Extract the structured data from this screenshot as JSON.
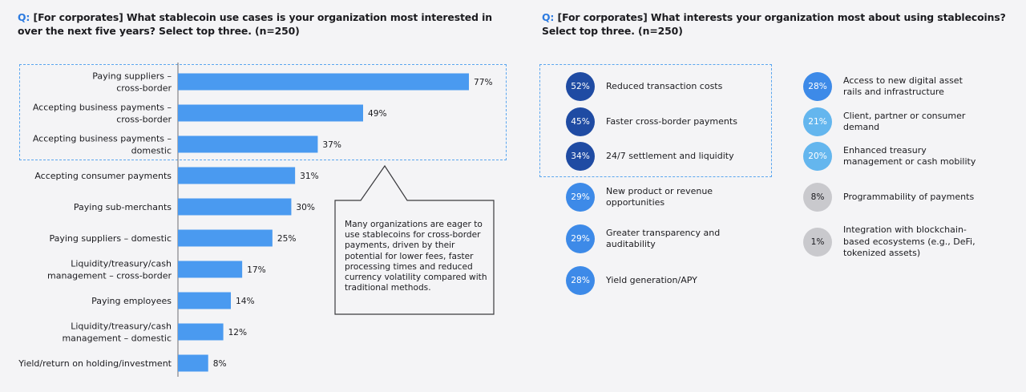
{
  "q1": {
    "prefix": "Q:",
    "text": "[For corporates] What stablecoin use cases is your organization most interested in over the next five years? Select top three. (n=250)"
  },
  "q2": {
    "prefix": "Q:",
    "text": "[For corporates] What interests your organization most about using stablecoins? Select top three. (n=250)"
  },
  "callout": "Many organizations are eager to use stablecoins for cross-border payments, driven by their potential for lower fees, faster processing times and reduced currency volatility compared with traditional methods.",
  "colors": {
    "bar": "#4a9af0",
    "accent": "#2d7be0",
    "dashed": "#5aa6ef",
    "dark": "#1f4ba3",
    "mid": "#3d8ae8",
    "light": "#64b6ee",
    "gray": "#c9c9cd"
  },
  "chart_data": {
    "type": "bar",
    "orientation": "horizontal",
    "categories": [
      [
        "Paying suppliers –",
        "cross-border"
      ],
      [
        "Accepting business payments –",
        "cross-border"
      ],
      [
        "Accepting business payments –",
        "domestic"
      ],
      [
        "Accepting consumer payments"
      ],
      [
        "Paying sub-merchants"
      ],
      [
        "Paying suppliers – domestic"
      ],
      [
        "Liquidity/treasury/cash",
        "management – cross-border"
      ],
      [
        "Paying employees"
      ],
      [
        "Liquidity/treasury/cash",
        "management – domestic"
      ],
      [
        "Yield/return on holding/investment"
      ]
    ],
    "values": [
      77,
      49,
      37,
      31,
      30,
      25,
      17,
      14,
      12,
      8
    ],
    "value_labels": [
      "77%",
      "49%",
      "37%",
      "31%",
      "30%",
      "25%",
      "17%",
      "14%",
      "12%",
      "8%"
    ],
    "xlim": [
      0,
      100
    ],
    "highlighted": [
      "Paying suppliers – cross-border",
      "Accepting business payments – cross-border",
      "Accepting business payments – domestic"
    ]
  },
  "interests": {
    "left": [
      {
        "pct": "52%",
        "value": 52,
        "label": "Reduced transaction costs",
        "tone": "dark"
      },
      {
        "pct": "45%",
        "value": 45,
        "label": "Faster cross-border payments",
        "tone": "dark"
      },
      {
        "pct": "34%",
        "value": 34,
        "label": "24/7 settlement and liquidity",
        "tone": "dark"
      },
      {
        "pct": "29%",
        "value": 29,
        "label": "New product or revenue opportunities",
        "tone": "mid"
      },
      {
        "pct": "29%",
        "value": 29,
        "label": "Greater transparency and auditability",
        "tone": "mid"
      },
      {
        "pct": "28%",
        "value": 28,
        "label": "Yield generation/APY",
        "tone": "mid"
      }
    ],
    "right": [
      {
        "pct": "28%",
        "value": 28,
        "label": "Access to new digital asset rails and infrastructure",
        "tone": "mid"
      },
      {
        "pct": "21%",
        "value": 21,
        "label": "Client, partner or consumer demand",
        "tone": "light"
      },
      {
        "pct": "20%",
        "value": 20,
        "label": "Enhanced treasury management or cash mobility",
        "tone": "light"
      },
      {
        "pct": "8%",
        "value": 8,
        "label": "Programmability of payments",
        "tone": "gray"
      },
      {
        "pct": "1%",
        "value": 1,
        "label": "Integration with blockchain-based ecosystems (e.g., DeFi, tokenized assets)",
        "tone": "gray"
      }
    ]
  }
}
